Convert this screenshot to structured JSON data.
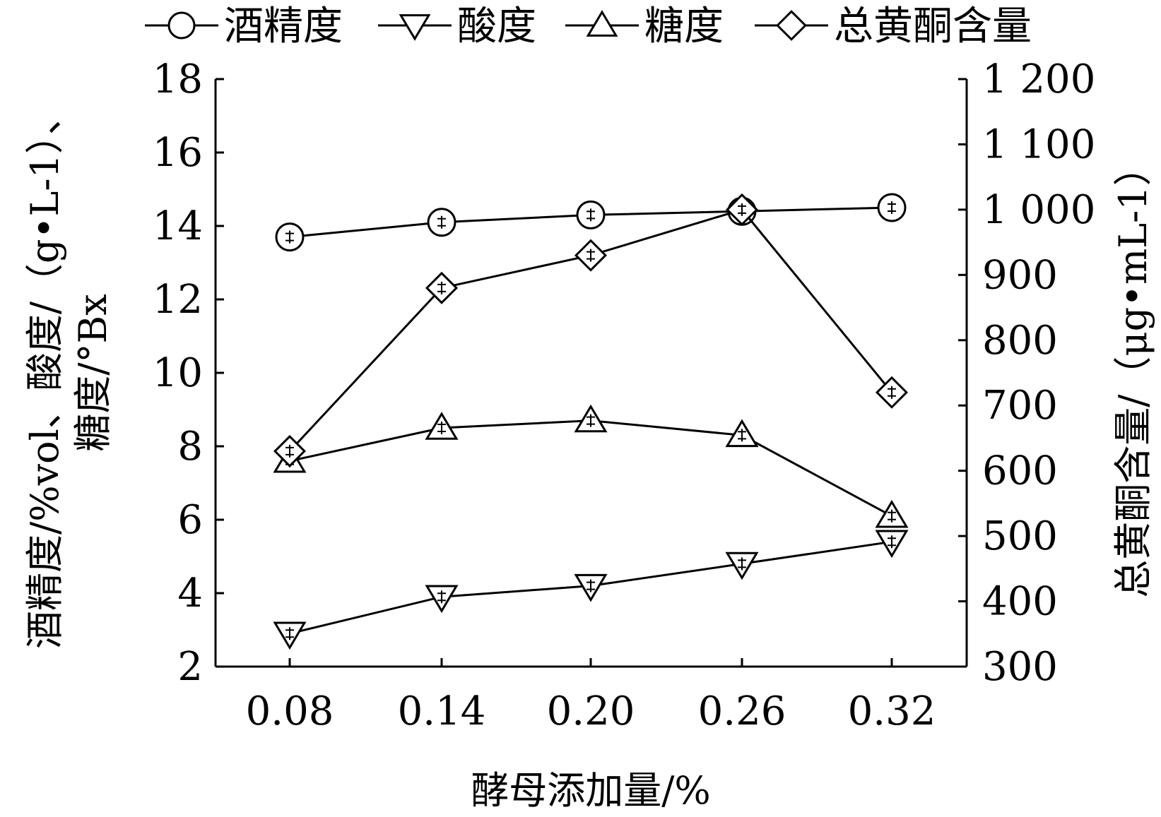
{
  "chart_data": {
    "type": "line",
    "categories": [
      "0.08",
      "0.14",
      "0.20",
      "0.26",
      "0.32"
    ],
    "xlabel": "酵母添加量/%",
    "ylabel_left_line1": "酒精度/%vol、酸度/（g•L-1）、",
    "ylabel_left_line2": "糖度/°Bx",
    "ylabel_right": "总黄酮含量/（μg•mL-1）",
    "ylim_left": [
      2,
      18
    ],
    "ylim_right": [
      300,
      1200
    ],
    "yticks_left": [
      "2",
      "4",
      "6",
      "8",
      "10",
      "12",
      "14",
      "16",
      "18"
    ],
    "yticks_right": [
      "300",
      "400",
      "500",
      "600",
      "700",
      "800",
      "900",
      "1 000",
      "1 100",
      "1 200"
    ],
    "grid": false,
    "legend_position": "top",
    "series": [
      {
        "name": "酒精度",
        "marker": "circle",
        "axis": "left",
        "values": [
          13.7,
          14.1,
          14.3,
          14.4,
          14.5
        ]
      },
      {
        "name": "酸度",
        "marker": "triangle-down",
        "axis": "left",
        "values": [
          2.9,
          3.9,
          4.2,
          4.8,
          5.4
        ]
      },
      {
        "name": "糖度",
        "marker": "triangle-up",
        "axis": "left",
        "values": [
          7.6,
          8.5,
          8.7,
          8.3,
          6.1
        ]
      },
      {
        "name": "总黄酮含量",
        "marker": "diamond",
        "axis": "right",
        "values": [
          630,
          880,
          930,
          1000,
          720
        ]
      }
    ]
  }
}
